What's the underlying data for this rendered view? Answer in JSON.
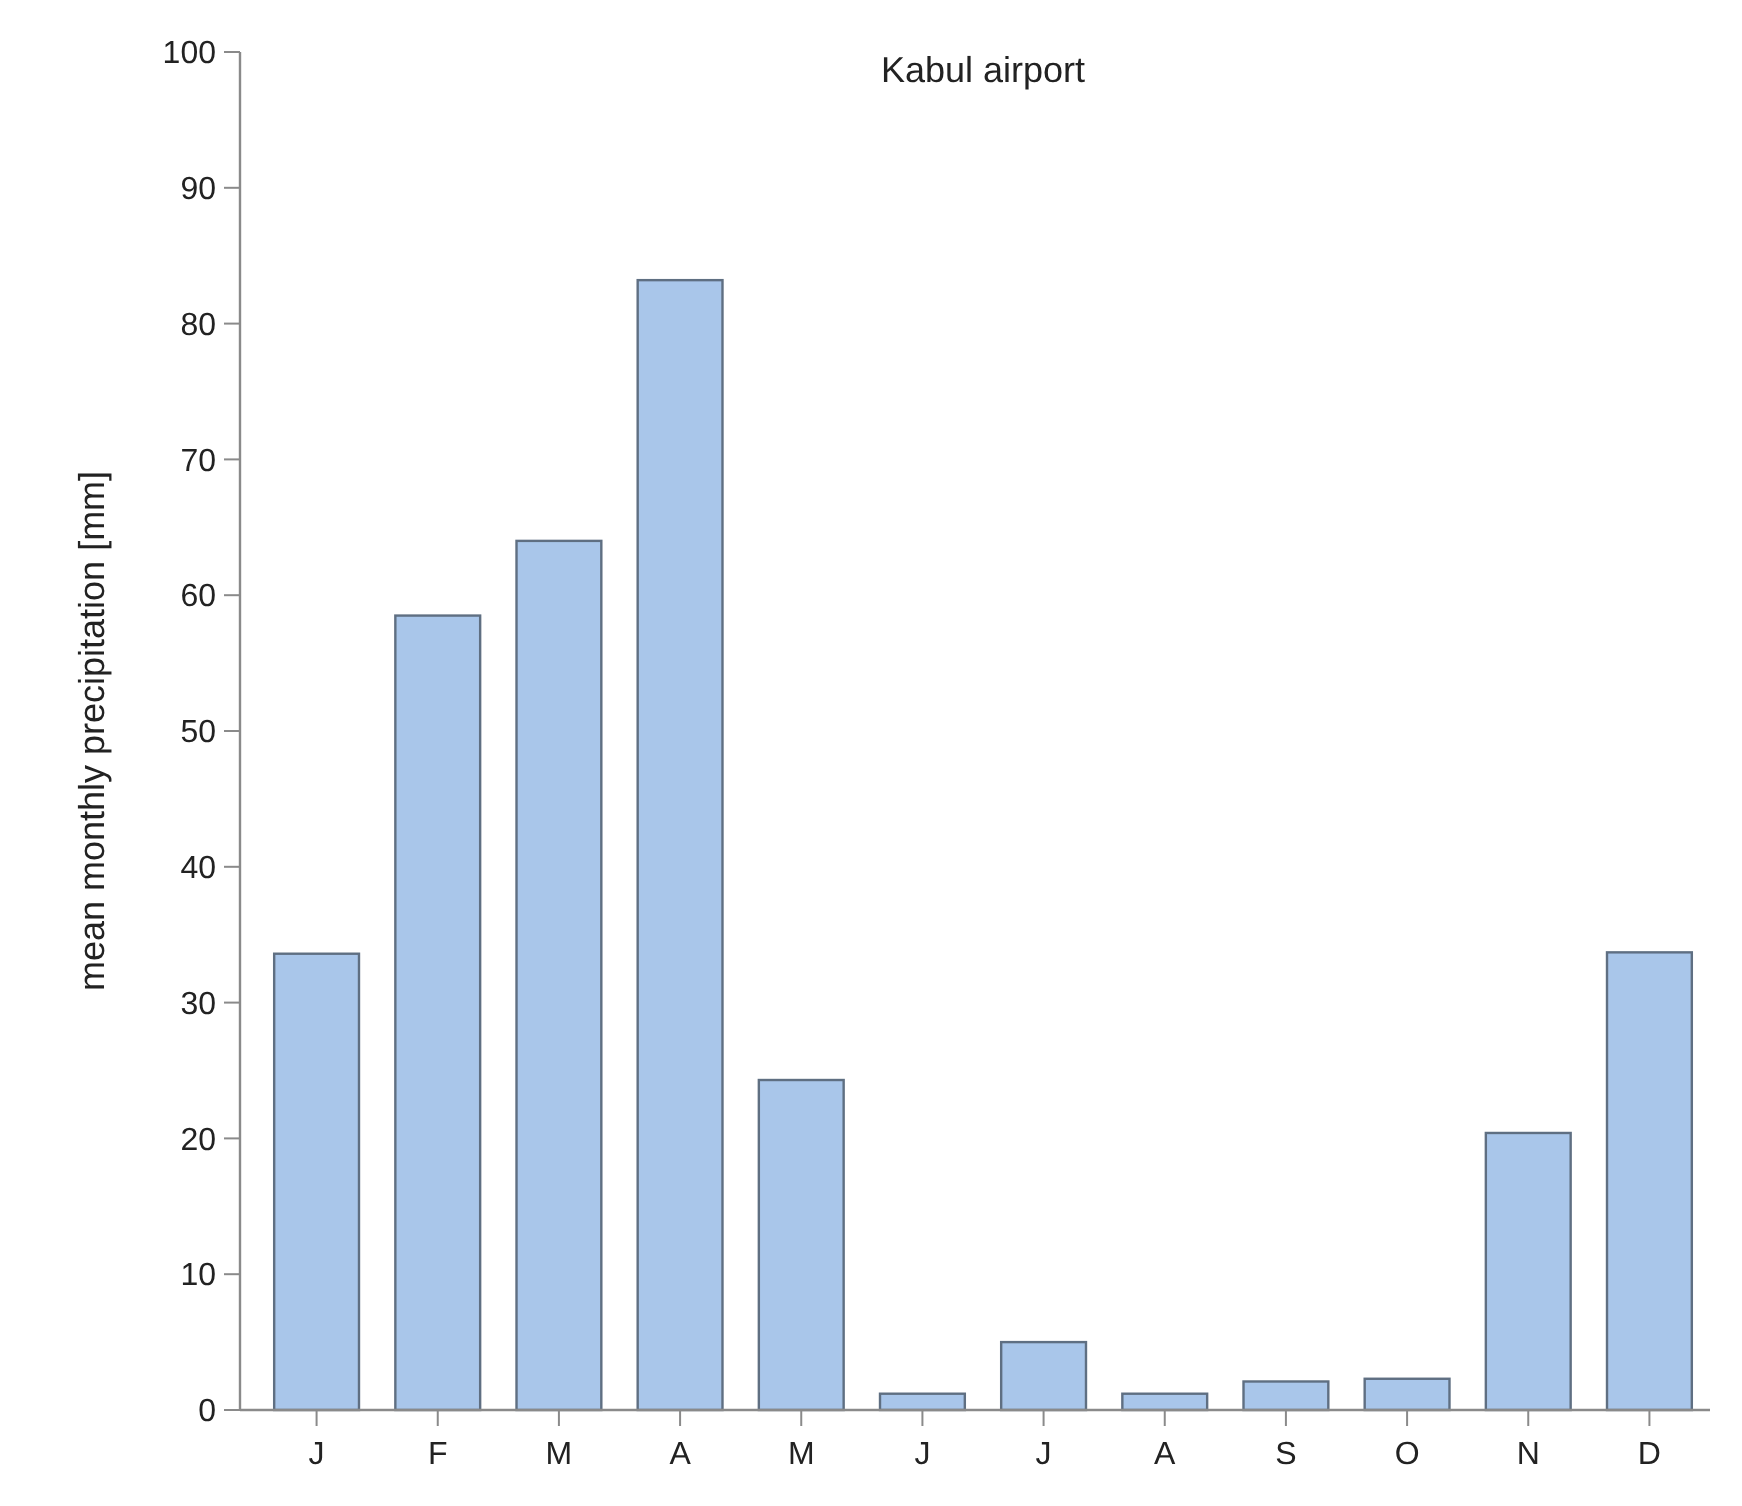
{
  "chart_data": {
    "type": "bar",
    "title": "Kabul airport",
    "ylabel": "mean monthly precipitation [mm]",
    "categories": [
      "J",
      "F",
      "M",
      "A",
      "M",
      "J",
      "J",
      "A",
      "S",
      "O",
      "N",
      "D"
    ],
    "values": [
      33.6,
      58.5,
      64,
      83.2,
      24.3,
      1.2,
      5,
      1.2,
      2.1,
      2.3,
      20.4,
      33.7
    ],
    "color": "#a9c6ea",
    "ylim": [
      0,
      100
    ],
    "yticks": [
      0,
      10,
      20,
      30,
      40,
      50,
      60,
      70,
      80,
      90,
      100
    ],
    "grid": false
  }
}
